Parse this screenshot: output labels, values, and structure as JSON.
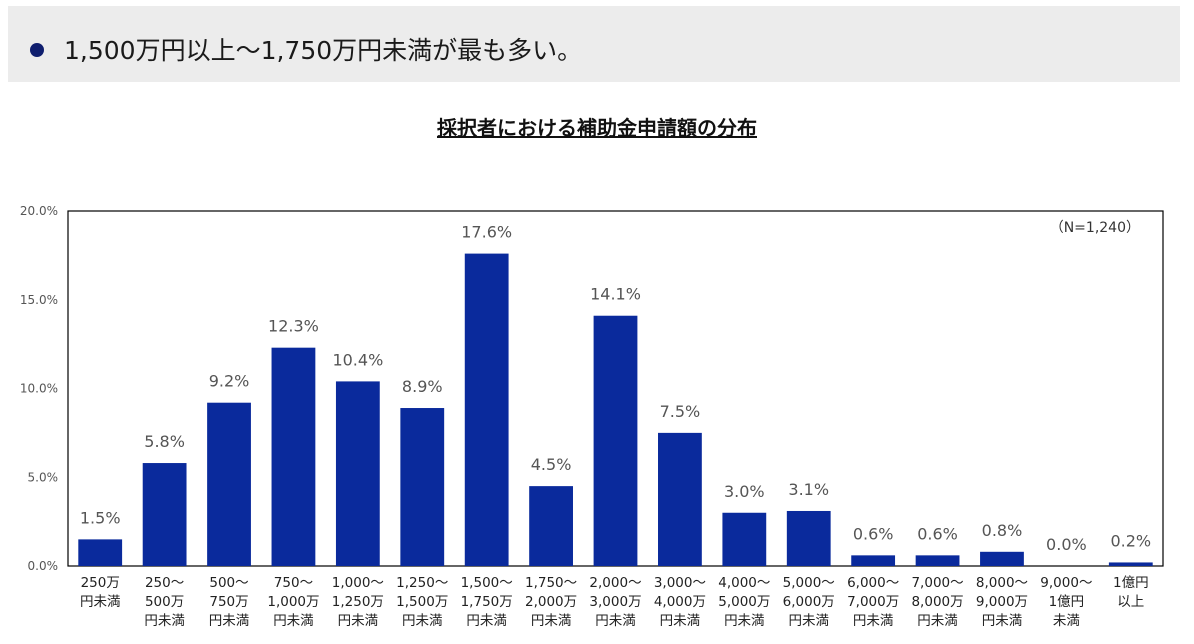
{
  "banner": {
    "text": "1,500万円以上～1,750万円未満が最も多い。"
  },
  "chart_data": {
    "type": "bar",
    "title": "採択者における補助金申請額の分布",
    "annotation": "（N=1,240）",
    "ylim": [
      0,
      20
    ],
    "yticks": [
      "0.0%",
      "5.0%",
      "10.0%",
      "15.0%",
      "20.0%"
    ],
    "ytick_values": [
      0,
      5,
      10,
      15,
      20
    ],
    "grid": false,
    "bar_color": "#0a2a9c",
    "categories": [
      [
        "250万",
        "円未満"
      ],
      [
        "250～",
        "500万",
        "円未満"
      ],
      [
        "500～",
        "750万",
        "円未満"
      ],
      [
        "750～",
        "1,000万",
        "円未満"
      ],
      [
        "1,000～",
        "1,250万",
        "円未満"
      ],
      [
        "1,250～",
        "1,500万",
        "円未満"
      ],
      [
        "1,500～",
        "1,750万",
        "円未満"
      ],
      [
        "1,750～",
        "2,000万",
        "円未満"
      ],
      [
        "2,000～",
        "3,000万",
        "円未満"
      ],
      [
        "3,000～",
        "4,000万",
        "円未満"
      ],
      [
        "4,000～",
        "5,000万",
        "円未満"
      ],
      [
        "5,000～",
        "6,000万",
        "円未満"
      ],
      [
        "6,000～",
        "7,000万",
        "円未満"
      ],
      [
        "7,000～",
        "8,000万",
        "円未満"
      ],
      [
        "8,000～",
        "9,000万",
        "円未満"
      ],
      [
        "9,000～",
        "1億円",
        "未満"
      ],
      [
        "1億円",
        "以上"
      ]
    ],
    "values": [
      1.5,
      5.8,
      9.2,
      12.3,
      10.4,
      8.9,
      17.6,
      4.5,
      14.1,
      7.5,
      3.0,
      3.1,
      0.6,
      0.6,
      0.8,
      0.0,
      0.2
    ],
    "labels": [
      "1.5%",
      "5.8%",
      "9.2%",
      "12.3%",
      "10.4%",
      "8.9%",
      "17.6%",
      "4.5%",
      "14.1%",
      "7.5%",
      "3.0%",
      "3.1%",
      "0.6%",
      "0.6%",
      "0.8%",
      "0.0%",
      "0.2%"
    ]
  }
}
